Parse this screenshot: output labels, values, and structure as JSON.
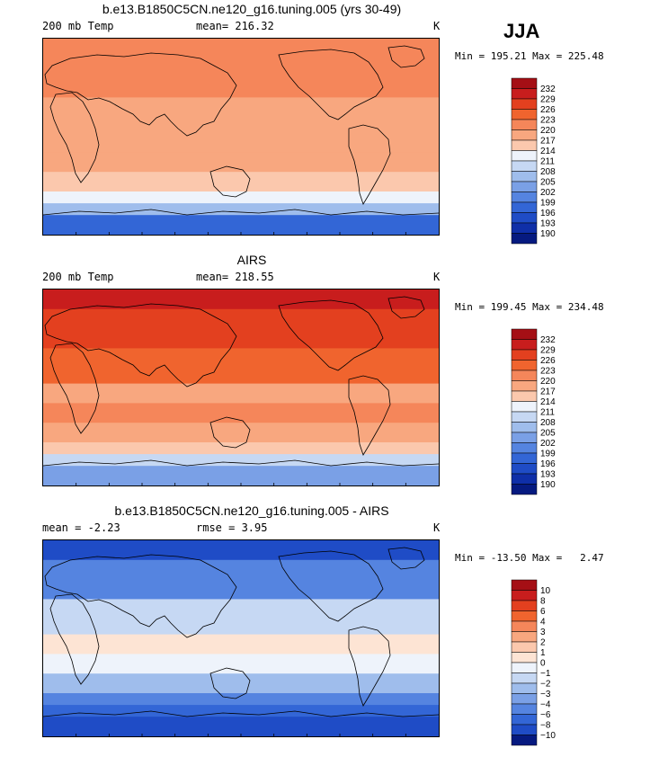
{
  "season": "JJA",
  "panels": [
    {
      "title": "b.e13.B1850C5CN.ne120_g16.tuning.005 (yrs 30-49)",
      "left_label": "200 mb Temp",
      "mid_label": "mean= 216.32",
      "units": "K",
      "minmax": "Min = 195.21 Max = 225.48",
      "levels": [
        "232",
        "229",
        "226",
        "223",
        "220",
        "217",
        "214",
        "211",
        "208",
        "205",
        "202",
        "199",
        "196",
        "193",
        "190"
      ],
      "colors": [
        "#a50f15",
        "#c81d1d",
        "#e3401f",
        "#f0642e",
        "#f5865a",
        "#f8a77f",
        "#fbc8ad",
        "#eef3fb",
        "#c6d8f3",
        "#9fbdec",
        "#7aa0e6",
        "#5584e0",
        "#3366d6",
        "#1f4cc6",
        "#0f2fa8",
        "#061a80"
      ],
      "bands": [
        {
          "name": "arctic",
          "color": "#f5865a"
        },
        {
          "name": "north-midlat",
          "color": "#f5865a"
        },
        {
          "name": "subtropics",
          "color": "#f8a77f"
        },
        {
          "name": "tropics",
          "color": "#f8a77f"
        },
        {
          "name": "south-subtropics",
          "color": "#f8a77f"
        },
        {
          "name": "south-midlat",
          "color": "#fbc8ad"
        },
        {
          "name": "south-transition",
          "color": "#eef3fb"
        },
        {
          "name": "south-high",
          "color": "#9fbdec"
        },
        {
          "name": "antarctic",
          "color": "#3366d6"
        }
      ]
    },
    {
      "title": "AIRS",
      "left_label": "200 mb Temp",
      "mid_label": "mean= 218.55",
      "units": "K",
      "minmax": "Min = 199.45 Max = 234.48",
      "levels": [
        "232",
        "229",
        "226",
        "223",
        "220",
        "217",
        "214",
        "211",
        "208",
        "205",
        "202",
        "199",
        "196",
        "193",
        "190"
      ],
      "colors": [
        "#a50f15",
        "#c81d1d",
        "#e3401f",
        "#f0642e",
        "#f5865a",
        "#f8a77f",
        "#fbc8ad",
        "#eef3fb",
        "#c6d8f3",
        "#9fbdec",
        "#7aa0e6",
        "#5584e0",
        "#3366d6",
        "#1f4cc6",
        "#0f2fa8",
        "#061a80"
      ],
      "bands": [
        {
          "name": "arctic",
          "color": "#c81d1d"
        },
        {
          "name": "north-midlat",
          "color": "#e3401f"
        },
        {
          "name": "subtropics",
          "color": "#f0642e"
        },
        {
          "name": "tropics",
          "color": "#f8a77f"
        },
        {
          "name": "south-subtropics",
          "color": "#f5865a"
        },
        {
          "name": "south-midlat",
          "color": "#f8a77f"
        },
        {
          "name": "south-transition",
          "color": "#fbc8ad"
        },
        {
          "name": "south-high",
          "color": "#c6d8f3"
        },
        {
          "name": "antarctic",
          "color": "#7aa0e6"
        }
      ]
    },
    {
      "title": "b.e13.B1850C5CN.ne120_g16.tuning.005 - AIRS",
      "left_label": "mean =   -2.23",
      "mid_label": "rmse =    3.95",
      "units": "K",
      "minmax": "Min = -13.50 Max =   2.47",
      "levels": [
        "10",
        "8",
        "6",
        "4",
        "3",
        "2",
        "1",
        "0",
        "−1",
        "−2",
        "−3",
        "−4",
        "−6",
        "−8",
        "−10"
      ],
      "colors": [
        "#a50f15",
        "#c81d1d",
        "#e3401f",
        "#f0642e",
        "#f5865a",
        "#f8a77f",
        "#fbc8ad",
        "#fde4d4",
        "#eef3fb",
        "#c6d8f3",
        "#9fbdec",
        "#7aa0e6",
        "#5584e0",
        "#3366d6",
        "#1f4cc6",
        "#061a80"
      ],
      "bands": [
        {
          "name": "arctic",
          "color": "#1f4cc6"
        },
        {
          "name": "north-midlat",
          "color": "#5584e0"
        },
        {
          "name": "subtropics",
          "color": "#c6d8f3"
        },
        {
          "name": "tropics",
          "color": "#fde4d4"
        },
        {
          "name": "south-subtropics",
          "color": "#eef3fb"
        },
        {
          "name": "south-midlat",
          "color": "#9fbdec"
        },
        {
          "name": "south-transition",
          "color": "#5584e0"
        },
        {
          "name": "south-high",
          "color": "#3366d6"
        },
        {
          "name": "antarctic",
          "color": "#1f4cc6"
        }
      ]
    }
  ]
}
